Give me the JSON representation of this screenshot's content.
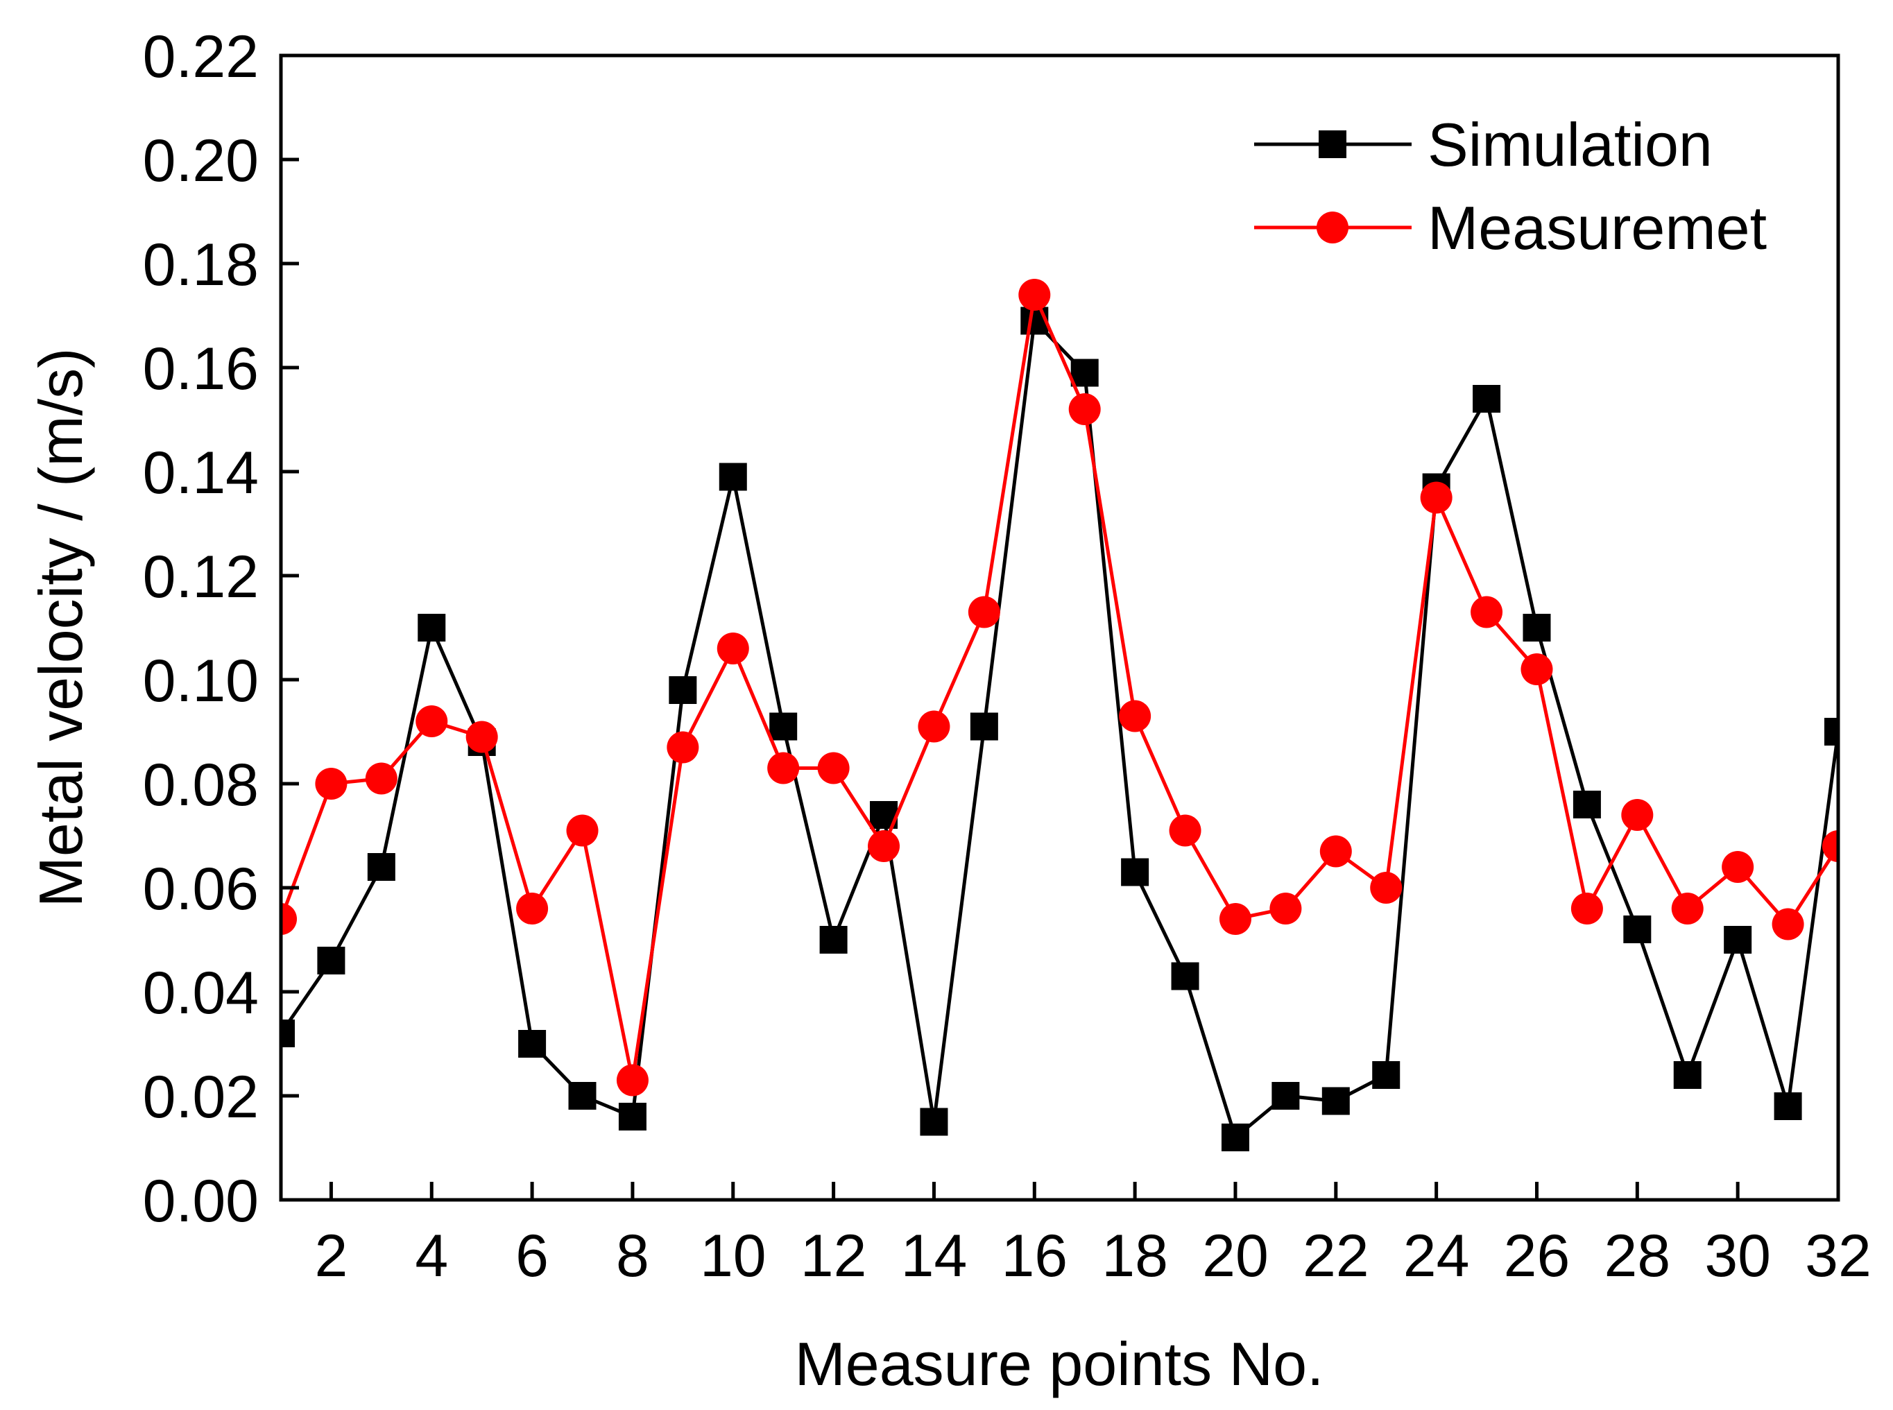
{
  "chart_data": {
    "type": "line",
    "title": "",
    "xlabel": "Measure points No.",
    "ylabel": "Metal velocity / (m/s)",
    "xlim": [
      1,
      32
    ],
    "ylim": [
      0,
      0.22
    ],
    "x_ticks": [
      2,
      4,
      6,
      8,
      10,
      12,
      14,
      16,
      18,
      20,
      22,
      24,
      26,
      28,
      30,
      32
    ],
    "x_tick_labels": [
      "2",
      "4",
      "6",
      "8",
      "10",
      "12",
      "14",
      "16",
      "18",
      "20",
      "22",
      "24",
      "26",
      "28",
      "30",
      "32"
    ],
    "y_ticks": [
      0,
      0.02,
      0.04,
      0.06,
      0.08,
      0.1,
      0.12,
      0.14,
      0.16,
      0.18,
      0.2,
      0.22
    ],
    "y_tick_labels": [
      "0.00",
      "0.02",
      "0.04",
      "0.06",
      "0.08",
      "0.10",
      "0.12",
      "0.14",
      "0.16",
      "0.18",
      "0.20",
      "0.22"
    ],
    "grid": false,
    "legend_position": "top-right",
    "x": [
      1,
      2,
      3,
      4,
      5,
      6,
      7,
      8,
      9,
      10,
      11,
      12,
      13,
      14,
      15,
      16,
      17,
      18,
      19,
      20,
      21,
      22,
      23,
      24,
      25,
      26,
      27,
      28,
      29,
      30,
      31,
      32
    ],
    "series": [
      {
        "name": "Simulation",
        "color": "#000000",
        "marker": "square",
        "values": [
          0.032,
          0.046,
          0.064,
          0.11,
          0.088,
          0.03,
          0.02,
          0.016,
          0.098,
          0.139,
          0.091,
          0.05,
          0.074,
          0.015,
          0.091,
          0.169,
          0.159,
          0.063,
          0.043,
          0.012,
          0.02,
          0.019,
          0.024,
          0.137,
          0.154,
          0.11,
          0.076,
          0.052,
          0.024,
          0.05,
          0.018,
          0.09
        ]
      },
      {
        "name": "Measuremet",
        "color": "#ff0000",
        "marker": "circle",
        "values": [
          0.054,
          0.08,
          0.081,
          0.092,
          0.089,
          0.056,
          0.071,
          0.023,
          0.087,
          0.106,
          0.083,
          0.083,
          0.068,
          0.091,
          0.113,
          0.174,
          0.152,
          0.093,
          0.071,
          0.054,
          0.056,
          0.067,
          0.06,
          0.135,
          0.113,
          0.102,
          0.056,
          0.074,
          0.056,
          0.064,
          0.053,
          0.068
        ]
      }
    ]
  }
}
